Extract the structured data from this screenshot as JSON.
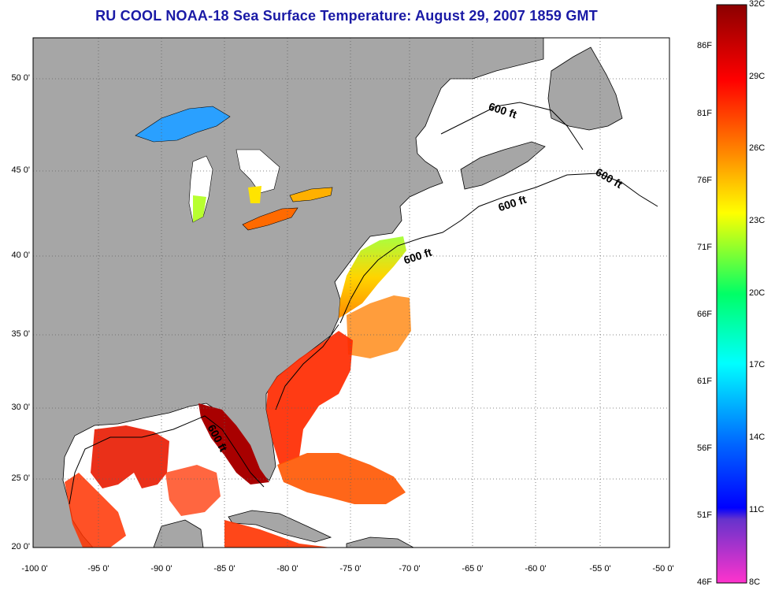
{
  "title": "RU COOL  NOAA-18  Sea Surface Temperature:  August 29, 2007 1859 GMT",
  "longitude_labels": [
    "-100 0'",
    "-95 0'",
    "-90 0'",
    "-85 0'",
    "-80 0'",
    "-75 0'",
    "-70 0'",
    "-65 0'",
    "-60 0'",
    "-55 0'",
    "-50 0'"
  ],
  "latitude_labels": [
    "50 0'",
    "45 0'",
    "40 0'",
    "35 0'",
    "30 0'",
    "25 0'",
    "20 0'"
  ],
  "colorbar": {
    "celsius_labels": [
      "32C",
      "29C",
      "26C",
      "23C",
      "20C",
      "17C",
      "14C",
      "11C",
      "8C"
    ],
    "fahrenheit_labels": [
      "86F",
      "81F",
      "76F",
      "71F",
      "66F",
      "61F",
      "56F",
      "51F",
      "46F"
    ],
    "colors": [
      "#8b0000",
      "#ff0000",
      "#ff8c00",
      "#ffff00",
      "#00ff66",
      "#00ffff",
      "#0066ff",
      "#0000ff",
      "#ff33cc"
    ]
  },
  "contour_labels": [
    "600 ft",
    "600 ft",
    "600 ft",
    "600 ft",
    "600 ft"
  ],
  "colors": {
    "land": "#a6a6a6",
    "ocean_no_data": "#ffffff",
    "title": "#1a1aa6"
  }
}
